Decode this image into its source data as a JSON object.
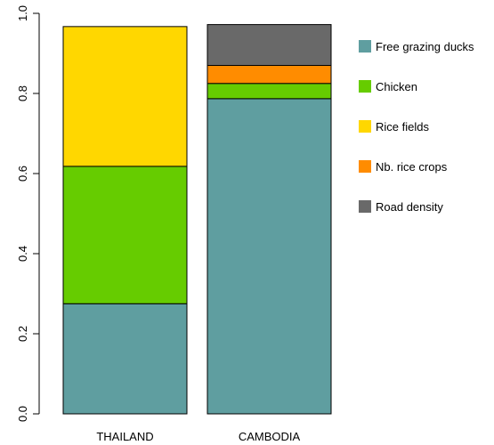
{
  "chart_data": {
    "type": "bar",
    "stacked": true,
    "categories": [
      "THAILAND",
      "CAMBODIA"
    ],
    "series": [
      {
        "name": "Free grazing ducks",
        "color": "#5f9ea0",
        "values": [
          0.275,
          0.787
        ]
      },
      {
        "name": "Chicken",
        "color": "#66cc00",
        "values": [
          0.343,
          0.038
        ]
      },
      {
        "name": "Rice fields",
        "color": "#ffd700",
        "values": [
          0.349,
          0.0
        ]
      },
      {
        "name": "Nb. rice crops",
        "color": "#ff8c00",
        "values": [
          0.0,
          0.045
        ]
      },
      {
        "name": "Road density",
        "color": "#696969",
        "values": [
          0.0,
          0.102
        ]
      }
    ],
    "ylim": [
      0,
      1.0
    ],
    "yticks": [
      "0.0",
      "0.2",
      "0.4",
      "0.6",
      "0.8",
      "1.0"
    ],
    "xlabel": "",
    "ylabel": "",
    "title": "",
    "legend_position": "right",
    "grid": false
  }
}
